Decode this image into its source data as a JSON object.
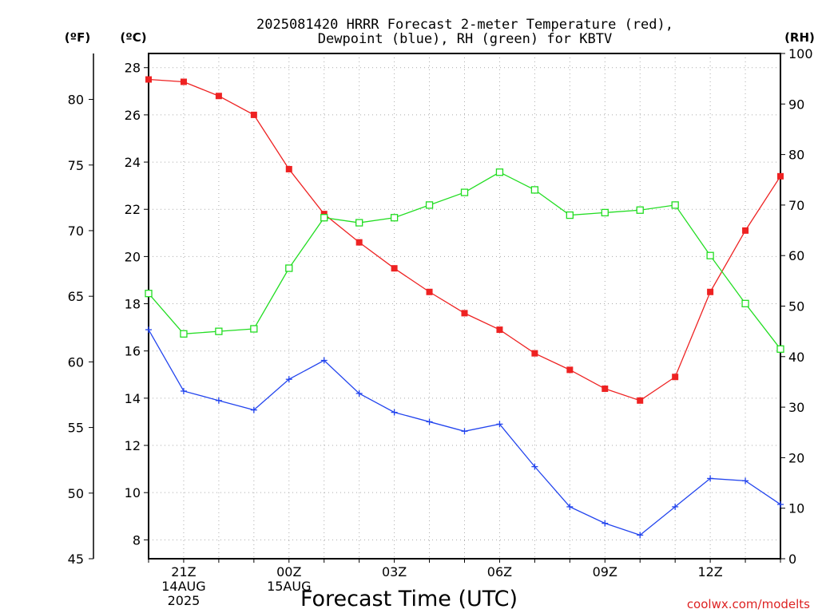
{
  "chart_data": {
    "type": "line",
    "title_line1": "2025081420 HRRR Forecast 2-meter Temperature (red),",
    "title_line2": "Dewpoint (blue), RH (green) for KBTV",
    "xlabel": "Forecast Time (UTC)",
    "units": {
      "fahrenheit": "(ºF)",
      "celsius": "(ºC)",
      "rh": "(RH)"
    },
    "hours": [
      "20Z",
      "21Z",
      "22Z",
      "23Z",
      "00Z",
      "01Z",
      "02Z",
      "03Z",
      "04Z",
      "05Z",
      "06Z",
      "07Z",
      "08Z",
      "09Z",
      "10Z",
      "11Z",
      "12Z",
      "13Z",
      "14Z"
    ],
    "x_tick_labels": [
      {
        "hour_index": 1,
        "lines": [
          "21Z",
          "14AUG",
          "2025"
        ]
      },
      {
        "hour_index": 4,
        "lines": [
          "00Z",
          "15AUG"
        ]
      },
      {
        "hour_index": 7,
        "lines": [
          "03Z"
        ]
      },
      {
        "hour_index": 10,
        "lines": [
          "06Z"
        ]
      },
      {
        "hour_index": 13,
        "lines": [
          "09Z"
        ]
      },
      {
        "hour_index": 16,
        "lines": [
          "12Z"
        ]
      }
    ],
    "celsius_axis": {
      "min": 7.2,
      "max": 28.6,
      "ticks": [
        8,
        10,
        12,
        14,
        16,
        18,
        20,
        22,
        24,
        26,
        28
      ]
    },
    "fahrenheit_axis": {
      "min": 45,
      "max": 83.5,
      "ticks": [
        45,
        50,
        55,
        60,
        65,
        70,
        75,
        80
      ]
    },
    "rh_axis": {
      "min": 0,
      "max": 100,
      "ticks": [
        0,
        10,
        20,
        30,
        40,
        50,
        60,
        70,
        80,
        90,
        100
      ]
    },
    "series": [
      {
        "name": "Temperature (red)",
        "color": "#ee2222",
        "axis": "celsius",
        "marker": "filled-square",
        "values": [
          27.5,
          27.4,
          26.8,
          26.0,
          23.7,
          21.8,
          20.6,
          19.5,
          18.5,
          17.6,
          16.9,
          15.9,
          15.2,
          14.4,
          13.9,
          14.9,
          18.5,
          21.1,
          23.4
        ]
      },
      {
        "name": "Dewpoint (blue)",
        "color": "#2244ee",
        "axis": "celsius",
        "marker": "plus",
        "values": [
          16.9,
          14.3,
          13.9,
          13.5,
          14.8,
          15.6,
          14.2,
          13.4,
          13.0,
          12.6,
          12.9,
          11.1,
          9.4,
          8.7,
          8.2,
          9.4,
          10.6,
          10.5,
          9.5
        ]
      },
      {
        "name": "RH (green)",
        "color": "#22dd22",
        "axis": "rh",
        "marker": "open-square",
        "values": [
          52.5,
          44.5,
          45.0,
          45.5,
          57.5,
          67.5,
          66.5,
          67.5,
          70.0,
          72.5,
          76.5,
          73.0,
          68.0,
          68.5,
          69.0,
          70.0,
          60.0,
          50.5,
          41.5
        ]
      }
    ],
    "grid": true
  },
  "footer": {
    "credit": "coolwx.com/modelts"
  },
  "colors": {
    "credit": "#dd2222",
    "grid": "#aaaaaa"
  }
}
